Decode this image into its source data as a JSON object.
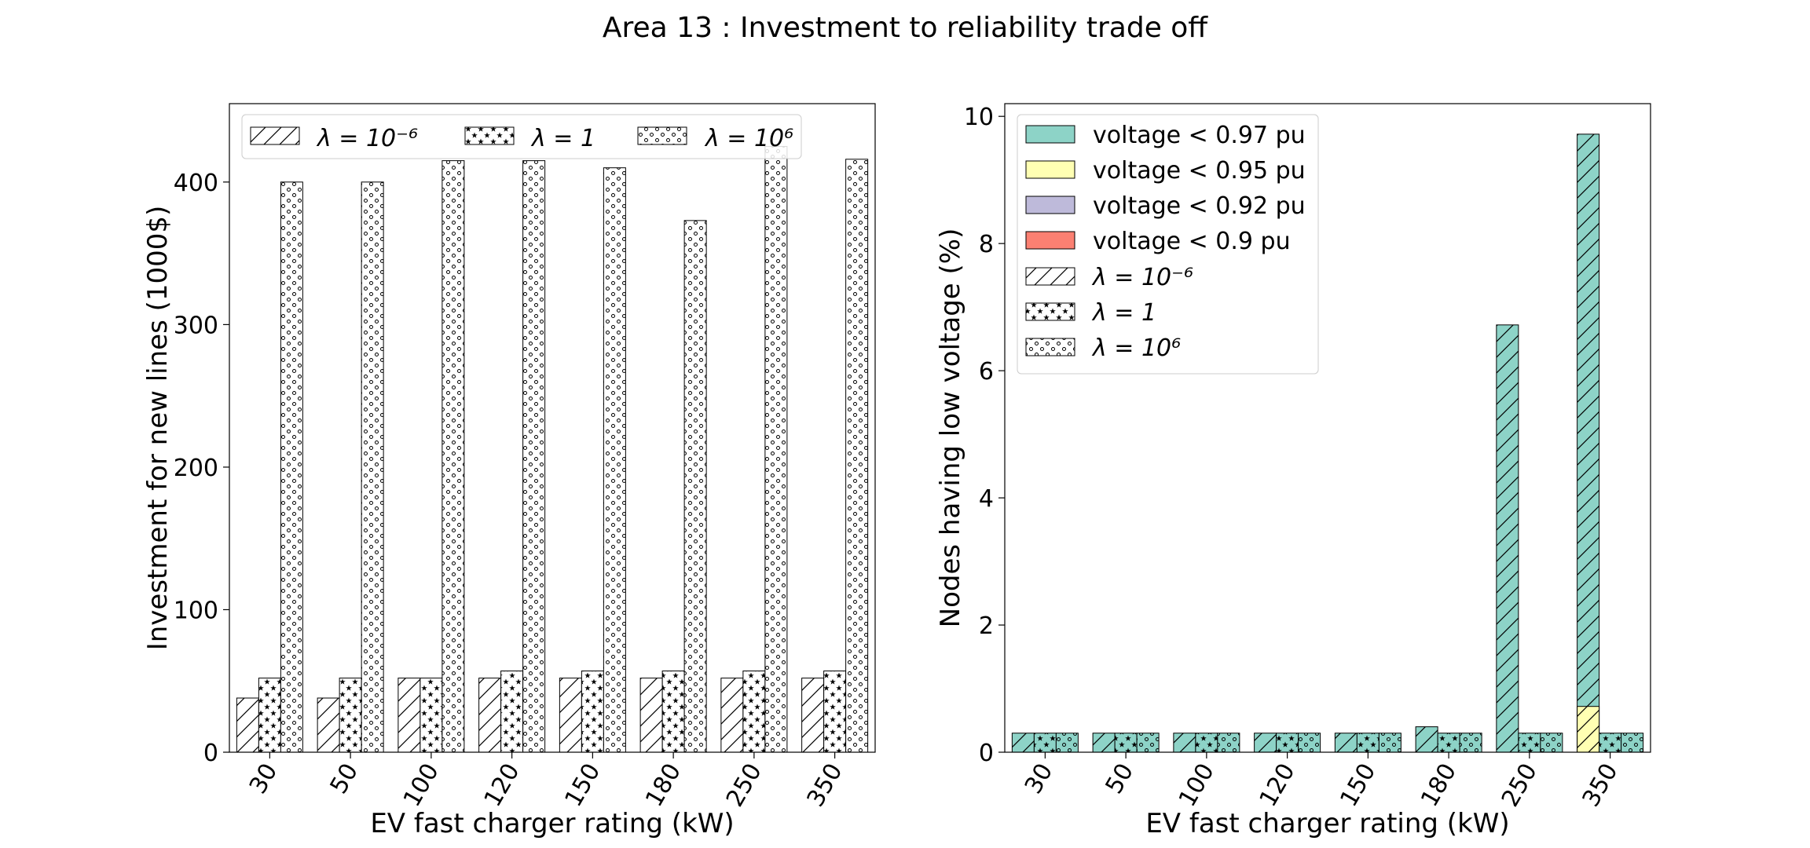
{
  "suptitle": "Area 13 : Investment to reliability trade off",
  "chart_data": [
    {
      "type": "bar",
      "xlabel": "EV fast charger rating (kW)",
      "ylabel": "Investment for new lines (1000$)",
      "categories": [
        "30",
        "50",
        "100",
        "120",
        "150",
        "180",
        "250",
        "350"
      ],
      "ylim": [
        0,
        455
      ],
      "yticks": [
        0,
        100,
        200,
        300,
        400
      ],
      "legend_position": "top",
      "series": [
        {
          "name": "λ = 10⁻⁶",
          "pattern": "hatch",
          "values": [
            38,
            38,
            52,
            52,
            52,
            52,
            52,
            52
          ]
        },
        {
          "name": "λ = 1",
          "pattern": "stars",
          "values": [
            52,
            52,
            52,
            57,
            57,
            57,
            57,
            57
          ]
        },
        {
          "name": "λ = 10⁶",
          "pattern": "circles",
          "values": [
            400,
            400,
            415,
            415,
            410,
            373,
            425,
            416
          ]
        }
      ]
    },
    {
      "type": "bar",
      "stacked": true,
      "xlabel": "EV fast charger rating (kW)",
      "ylabel": "Nodes having low voltage (%)",
      "categories": [
        "30",
        "50",
        "100",
        "120",
        "150",
        "180",
        "250",
        "350"
      ],
      "ylim": [
        0,
        10.2
      ],
      "yticks": [
        0,
        2,
        4,
        6,
        8,
        10
      ],
      "legend_position": "top-left",
      "colors": {
        "v097": "#8dd3c7",
        "v095": "#ffffb3",
        "v092": "#bebada",
        "v09": "#fb8072"
      },
      "voltage_legend": [
        "voltage < 0.97 pu",
        "voltage < 0.95 pu",
        "voltage < 0.92 pu",
        "voltage < 0.9 pu"
      ],
      "series": [
        {
          "name": "λ = 10⁻⁶",
          "pattern": "hatch",
          "v097": [
            0.3,
            0.3,
            0.3,
            0.3,
            0.3,
            0.4,
            6.72,
            9.72
          ],
          "v095": [
            0,
            0,
            0,
            0,
            0,
            0,
            0,
            0.72
          ],
          "v092": [
            0,
            0,
            0,
            0,
            0,
            0,
            0,
            0
          ],
          "v09": [
            0,
            0,
            0,
            0,
            0,
            0,
            0,
            0
          ]
        },
        {
          "name": "λ = 1",
          "pattern": "stars",
          "v097": [
            0.3,
            0.3,
            0.3,
            0.3,
            0.3,
            0.3,
            0.3,
            0.3
          ],
          "v095": [
            0,
            0,
            0,
            0,
            0,
            0,
            0,
            0
          ],
          "v092": [
            0,
            0,
            0,
            0,
            0,
            0,
            0,
            0
          ],
          "v09": [
            0,
            0,
            0,
            0,
            0,
            0,
            0,
            0
          ]
        },
        {
          "name": "λ = 10⁶",
          "pattern": "circles",
          "v097": [
            0.3,
            0.3,
            0.3,
            0.3,
            0.3,
            0.3,
            0.3,
            0.3
          ],
          "v095": [
            0,
            0,
            0,
            0,
            0,
            0,
            0,
            0
          ],
          "v092": [
            0,
            0,
            0,
            0,
            0,
            0,
            0,
            0
          ],
          "v09": [
            0,
            0,
            0,
            0,
            0,
            0,
            0,
            0
          ]
        }
      ]
    }
  ]
}
